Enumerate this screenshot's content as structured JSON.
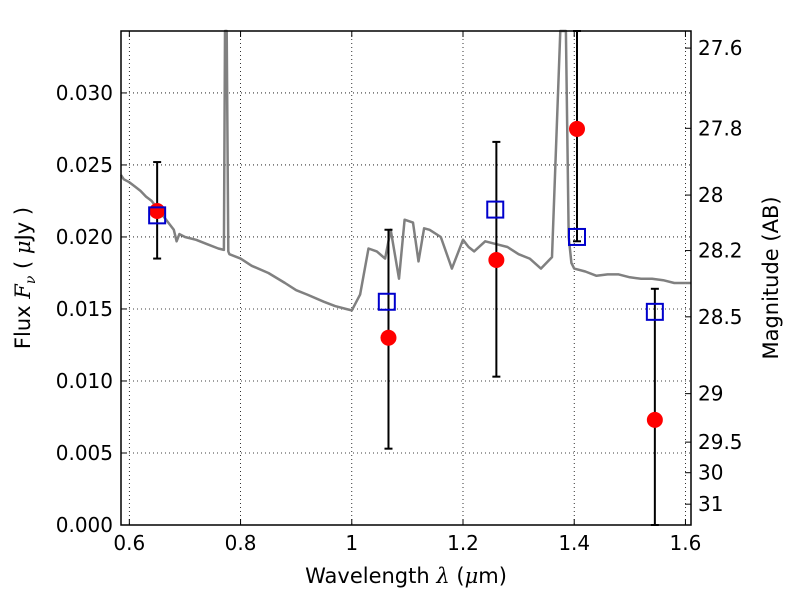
{
  "chart_data": {
    "type": "scatter",
    "xlabel": {
      "text": "Wavelength",
      "symbol": "λ",
      "unit_open": "(",
      "unit_mu": "μ",
      "unit_rest": "m)"
    },
    "ylabel": {
      "text": "Flux",
      "symbol": "F",
      "sub": "ν",
      "unit_open": "( ",
      "unit_mu": "μ",
      "unit_rest": "Jy )"
    },
    "y2label": "Magnitude (AB)",
    "xlim": [
      0.585,
      1.61
    ],
    "ylim": [
      0.0,
      0.0343
    ],
    "x_ticks": [
      0.6,
      0.8,
      1.0,
      1.2,
      1.4,
      1.6
    ],
    "x_tick_labels": [
      "0.6",
      "0.8",
      "1",
      "1.2",
      "1.4",
      "1.6"
    ],
    "y_ticks": [
      0.0,
      0.005,
      0.01,
      0.015,
      0.02,
      0.025,
      0.03
    ],
    "y_tick_labels": [
      "0.000",
      "0.005",
      "0.010",
      "0.015",
      "0.020",
      "0.025",
      "0.030"
    ],
    "y2_tick_magnitudes": [
      27.6,
      27.8,
      28,
      28.2,
      28.5,
      29,
      29.5,
      30,
      31
    ],
    "y2_tick_labels": [
      "27.6",
      "27.8",
      "28",
      "28.2",
      "28.5",
      "29",
      "29.5",
      "30",
      "31"
    ],
    "grid": true,
    "colors": {
      "spectrum": "#808080",
      "model_points": "#0000cc",
      "observed_points": "#ff0000",
      "errorbars": "#000000"
    },
    "series": [
      {
        "style": "line",
        "color": "#808080",
        "x": [
          0.585,
          0.59,
          0.6,
          0.61,
          0.62,
          0.63,
          0.64,
          0.65,
          0.66,
          0.67,
          0.68,
          0.685,
          0.69,
          0.7,
          0.72,
          0.74,
          0.76,
          0.77,
          0.772,
          0.775,
          0.778,
          0.78,
          0.8,
          0.82,
          0.85,
          0.88,
          0.9,
          0.92,
          0.95,
          0.97,
          0.99,
          1.0,
          1.015,
          1.03,
          1.045,
          1.06,
          1.07,
          1.085,
          1.095,
          1.11,
          1.12,
          1.13,
          1.14,
          1.16,
          1.18,
          1.2,
          1.21,
          1.22,
          1.24,
          1.26,
          1.28,
          1.3,
          1.32,
          1.34,
          1.36,
          1.375,
          1.38,
          1.385,
          1.39,
          1.395,
          1.4,
          1.42,
          1.44,
          1.46,
          1.48,
          1.5,
          1.52,
          1.54,
          1.56,
          1.58,
          1.61
        ],
        "y": [
          0.0243,
          0.024,
          0.0238,
          0.0235,
          0.0232,
          0.0228,
          0.0225,
          0.022,
          0.0215,
          0.021,
          0.0205,
          0.0197,
          0.0202,
          0.02,
          0.0198,
          0.0195,
          0.0192,
          0.0191,
          0.0345,
          0.0345,
          0.019,
          0.0188,
          0.0185,
          0.018,
          0.0175,
          0.0168,
          0.0163,
          0.016,
          0.0155,
          0.0152,
          0.015,
          0.0149,
          0.016,
          0.0192,
          0.019,
          0.0185,
          0.0205,
          0.0171,
          0.0212,
          0.021,
          0.0183,
          0.0206,
          0.0205,
          0.02,
          0.0178,
          0.0198,
          0.0193,
          0.019,
          0.0197,
          0.0195,
          0.0193,
          0.0188,
          0.0185,
          0.0178,
          0.0186,
          0.0345,
          0.0345,
          0.0345,
          0.02,
          0.0182,
          0.0178,
          0.0176,
          0.0173,
          0.0174,
          0.0174,
          0.0172,
          0.0171,
          0.0171,
          0.017,
          0.0168,
          0.0168
        ]
      },
      {
        "style": "open-squares",
        "color": "#0000cc",
        "points": [
          {
            "x": 0.65,
            "y": 0.0215
          },
          {
            "x": 1.063,
            "y": 0.0155
          },
          {
            "x": 1.258,
            "y": 0.0219
          },
          {
            "x": 1.405,
            "y": 0.02
          },
          {
            "x": 1.545,
            "y": 0.0148
          }
        ]
      },
      {
        "style": "filled-circles-with-errorbars",
        "color": "#ff0000",
        "points": [
          {
            "x": 0.65,
            "y": 0.0218,
            "err_low": 0.0185,
            "err_high": 0.0252
          },
          {
            "x": 1.066,
            "y": 0.013,
            "err_low": 0.0053,
            "err_high": 0.0205
          },
          {
            "x": 1.26,
            "y": 0.0184,
            "err_low": 0.0103,
            "err_high": 0.0266
          },
          {
            "x": 1.405,
            "y": 0.0275,
            "err_low": 0.0197,
            "err_high": 0.0343
          },
          {
            "x": 1.545,
            "y": 0.0073,
            "err_low": 0.0,
            "err_high": 0.0164
          }
        ]
      }
    ]
  }
}
